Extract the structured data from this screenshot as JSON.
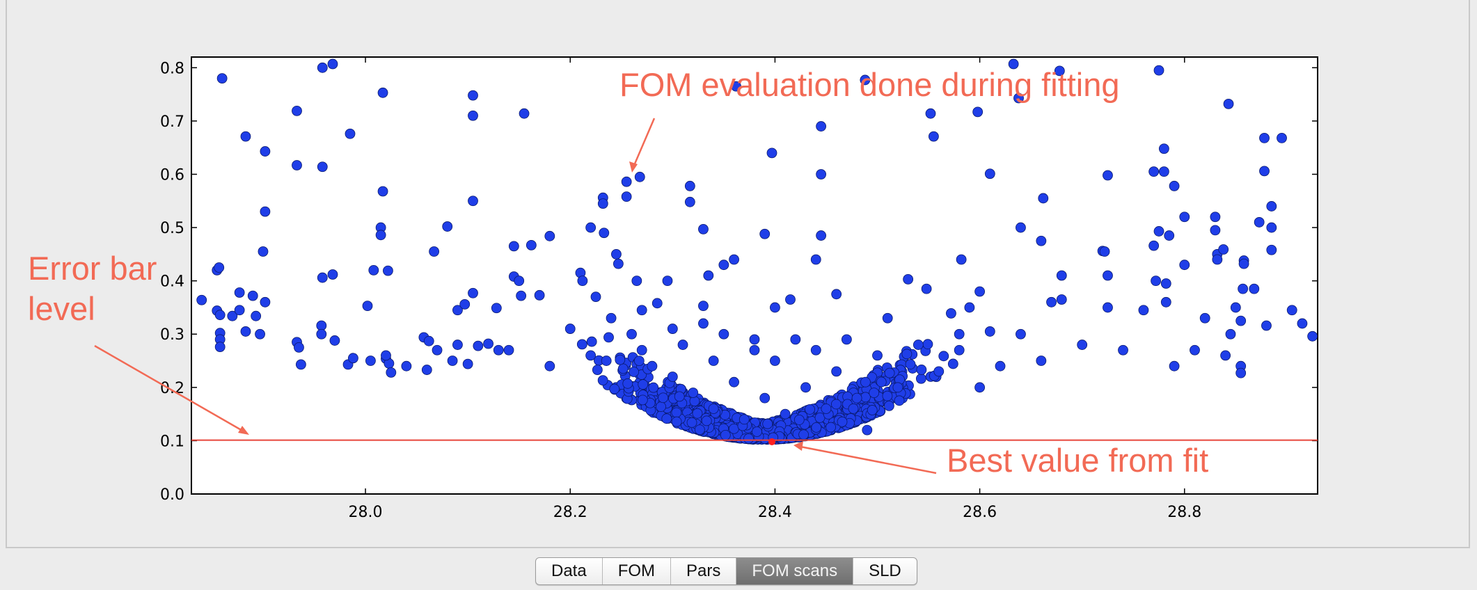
{
  "tabs": [
    {
      "label": "Data",
      "selected": false
    },
    {
      "label": "FOM",
      "selected": false
    },
    {
      "label": "Pars",
      "selected": false
    },
    {
      "label": "FOM scans",
      "selected": true
    },
    {
      "label": "SLD",
      "selected": false
    }
  ],
  "colors": {
    "points": "#1f3ee8",
    "point_edge": "#0a1a6e",
    "best_point": "#ff2020",
    "annotation": "#f26a55",
    "error_line": "#e8453a"
  },
  "annotations": {
    "fom_eval": "FOM evaluation done during fitting",
    "error_bar_line1": "Error bar",
    "error_bar_line2": "level",
    "best_value": "Best value from fit"
  },
  "chart_data": {
    "type": "scatter",
    "title": "",
    "xlabel": "",
    "ylabel": "",
    "xlim": [
      27.83,
      28.93
    ],
    "ylim": [
      0.0,
      0.82
    ],
    "grid": false,
    "legend": "none",
    "x_ticks": [
      28.0,
      28.2,
      28.4,
      28.6,
      28.8
    ],
    "x_tick_labels": [
      "28.0",
      "28.2",
      "28.4",
      "28.6",
      "28.8"
    ],
    "y_ticks": [
      0.0,
      0.1,
      0.2,
      0.3,
      0.4,
      0.5,
      0.6,
      0.7,
      0.8
    ],
    "y_tick_labels": [
      "0.0",
      "0.1",
      "0.2",
      "0.3",
      "0.4",
      "0.5",
      "0.6",
      "0.7",
      "0.8"
    ],
    "error_bar_level": 0.101,
    "best_value": {
      "x": 28.397,
      "y": 0.098
    },
    "points": [
      [
        27.84,
        0.364
      ],
      [
        27.855,
        0.344
      ],
      [
        27.855,
        0.42
      ],
      [
        27.857,
        0.425
      ],
      [
        27.858,
        0.336
      ],
      [
        27.858,
        0.302
      ],
      [
        27.858,
        0.29
      ],
      [
        27.858,
        0.276
      ],
      [
        27.86,
        0.78
      ],
      [
        27.87,
        0.334
      ],
      [
        27.877,
        0.345
      ],
      [
        27.877,
        0.378
      ],
      [
        27.883,
        0.671
      ],
      [
        27.883,
        0.305
      ],
      [
        27.89,
        0.372
      ],
      [
        27.893,
        0.334
      ],
      [
        27.897,
        0.3
      ],
      [
        27.9,
        0.455
      ],
      [
        27.902,
        0.53
      ],
      [
        27.902,
        0.643
      ],
      [
        27.902,
        0.36
      ],
      [
        27.933,
        0.719
      ],
      [
        27.933,
        0.617
      ],
      [
        27.933,
        0.285
      ],
      [
        27.935,
        0.275
      ],
      [
        27.937,
        0.243
      ],
      [
        27.958,
        0.8
      ],
      [
        27.958,
        0.614
      ],
      [
        27.958,
        0.406
      ],
      [
        27.957,
        0.316
      ],
      [
        27.957,
        0.3
      ],
      [
        27.968,
        0.807
      ],
      [
        27.968,
        0.412
      ],
      [
        27.97,
        0.288
      ],
      [
        27.983,
        0.243
      ],
      [
        27.985,
        0.676
      ],
      [
        27.988,
        0.255
      ],
      [
        28.002,
        0.353
      ],
      [
        28.005,
        0.25
      ],
      [
        28.008,
        0.42
      ],
      [
        28.015,
        0.5
      ],
      [
        28.015,
        0.486
      ],
      [
        28.017,
        0.753
      ],
      [
        28.017,
        0.568
      ],
      [
        28.02,
        0.254
      ],
      [
        28.022,
        0.419
      ],
      [
        28.023,
        0.245
      ],
      [
        28.025,
        0.228
      ],
      [
        28.057,
        0.294
      ],
      [
        28.06,
        0.233
      ],
      [
        28.062,
        0.287
      ],
      [
        28.067,
        0.455
      ],
      [
        28.07,
        0.27
      ],
      [
        28.08,
        0.502
      ],
      [
        28.085,
        0.25
      ],
      [
        28.09,
        0.345
      ],
      [
        28.097,
        0.356
      ],
      [
        28.1,
        0.244
      ],
      [
        28.105,
        0.748
      ],
      [
        28.105,
        0.71
      ],
      [
        28.105,
        0.55
      ],
      [
        28.105,
        0.377
      ],
      [
        28.11,
        0.278
      ],
      [
        28.12,
        0.282
      ],
      [
        28.128,
        0.349
      ],
      [
        28.14,
        0.27
      ],
      [
        28.145,
        0.465
      ],
      [
        28.145,
        0.408
      ],
      [
        28.15,
        0.4
      ],
      [
        28.152,
        0.372
      ],
      [
        28.155,
        0.714
      ],
      [
        28.162,
        0.467
      ],
      [
        28.17,
        0.373
      ],
      [
        28.18,
        0.484
      ],
      [
        28.2,
        0.31
      ],
      [
        28.21,
        0.415
      ],
      [
        28.212,
        0.4
      ],
      [
        28.22,
        0.5
      ],
      [
        28.225,
        0.37
      ],
      [
        28.232,
        0.556
      ],
      [
        28.232,
        0.545
      ],
      [
        28.233,
        0.49
      ],
      [
        28.24,
        0.33
      ],
      [
        28.245,
        0.45
      ],
      [
        28.247,
        0.432
      ],
      [
        28.255,
        0.586
      ],
      [
        28.255,
        0.558
      ],
      [
        28.265,
        0.4
      ],
      [
        28.268,
        0.595
      ],
      [
        28.27,
        0.345
      ],
      [
        28.285,
        0.358
      ],
      [
        28.295,
        0.4
      ],
      [
        28.317,
        0.578
      ],
      [
        28.317,
        0.548
      ],
      [
        28.33,
        0.497
      ],
      [
        28.33,
        0.353
      ],
      [
        28.335,
        0.41
      ],
      [
        28.35,
        0.43
      ],
      [
        28.36,
        0.44
      ],
      [
        28.362,
        0.765
      ],
      [
        28.38,
        0.29
      ],
      [
        28.39,
        0.488
      ],
      [
        28.397,
        0.64
      ],
      [
        28.4,
        0.35
      ],
      [
        28.415,
        0.365
      ],
      [
        28.44,
        0.44
      ],
      [
        28.445,
        0.69
      ],
      [
        28.445,
        0.6
      ],
      [
        28.445,
        0.485
      ],
      [
        28.46,
        0.375
      ],
      [
        28.488,
        0.777
      ],
      [
        28.51,
        0.33
      ],
      [
        28.53,
        0.403
      ],
      [
        28.548,
        0.385
      ],
      [
        28.552,
        0.714
      ],
      [
        28.555,
        0.671
      ],
      [
        28.572,
        0.339
      ],
      [
        28.58,
        0.3
      ],
      [
        28.582,
        0.44
      ],
      [
        28.59,
        0.35
      ],
      [
        28.598,
        0.717
      ],
      [
        28.6,
        0.38
      ],
      [
        28.61,
        0.601
      ],
      [
        28.61,
        0.305
      ],
      [
        28.633,
        0.807
      ],
      [
        28.638,
        0.743
      ],
      [
        28.64,
        0.5
      ],
      [
        28.66,
        0.475
      ],
      [
        28.662,
        0.555
      ],
      [
        28.67,
        0.36
      ],
      [
        28.678,
        0.794
      ],
      [
        28.68,
        0.41
      ],
      [
        28.68,
        0.365
      ],
      [
        28.72,
        0.456
      ],
      [
        28.722,
        0.455
      ],
      [
        28.725,
        0.598
      ],
      [
        28.725,
        0.41
      ],
      [
        28.725,
        0.35
      ],
      [
        28.76,
        0.345
      ],
      [
        28.77,
        0.605
      ],
      [
        28.77,
        0.466
      ],
      [
        28.772,
        0.4
      ],
      [
        28.775,
        0.493
      ],
      [
        28.775,
        0.795
      ],
      [
        28.78,
        0.648
      ],
      [
        28.78,
        0.605
      ],
      [
        28.782,
        0.395
      ],
      [
        28.782,
        0.36
      ],
      [
        28.785,
        0.485
      ],
      [
        28.79,
        0.578
      ],
      [
        28.8,
        0.52
      ],
      [
        28.8,
        0.43
      ],
      [
        28.82,
        0.33
      ],
      [
        28.83,
        0.52
      ],
      [
        28.83,
        0.495
      ],
      [
        28.832,
        0.45
      ],
      [
        28.832,
        0.44
      ],
      [
        28.838,
        0.459
      ],
      [
        28.843,
        0.732
      ],
      [
        28.845,
        0.3
      ],
      [
        28.85,
        0.35
      ],
      [
        28.855,
        0.325
      ],
      [
        28.857,
        0.385
      ],
      [
        28.858,
        0.438
      ],
      [
        28.858,
        0.432
      ],
      [
        28.855,
        0.24
      ],
      [
        28.855,
        0.227
      ],
      [
        28.868,
        0.385
      ],
      [
        28.873,
        0.51
      ],
      [
        28.878,
        0.668
      ],
      [
        28.878,
        0.606
      ],
      [
        28.88,
        0.316
      ],
      [
        28.885,
        0.54
      ],
      [
        28.885,
        0.5
      ],
      [
        28.885,
        0.458
      ],
      [
        28.895,
        0.668
      ],
      [
        28.905,
        0.345
      ],
      [
        28.915,
        0.32
      ],
      [
        28.925,
        0.296
      ],
      [
        28.26,
        0.3
      ],
      [
        28.27,
        0.27
      ],
      [
        28.28,
        0.24
      ],
      [
        28.3,
        0.31
      ],
      [
        28.3,
        0.22
      ],
      [
        28.31,
        0.28
      ],
      [
        28.32,
        0.19
      ],
      [
        28.33,
        0.32
      ],
      [
        28.34,
        0.25
      ],
      [
        28.34,
        0.16
      ],
      [
        28.35,
        0.3
      ],
      [
        28.36,
        0.21
      ],
      [
        28.37,
        0.14
      ],
      [
        28.38,
        0.27
      ],
      [
        28.39,
        0.18
      ],
      [
        28.4,
        0.25
      ],
      [
        28.41,
        0.15
      ],
      [
        28.42,
        0.29
      ],
      [
        28.43,
        0.2
      ],
      [
        28.44,
        0.27
      ],
      [
        28.45,
        0.16
      ],
      [
        28.46,
        0.23
      ],
      [
        28.47,
        0.29
      ],
      [
        28.48,
        0.18
      ],
      [
        28.49,
        0.12
      ],
      [
        28.5,
        0.26
      ],
      [
        28.52,
        0.2
      ],
      [
        28.54,
        0.28
      ],
      [
        28.56,
        0.23
      ],
      [
        28.58,
        0.27
      ],
      [
        28.6,
        0.2
      ],
      [
        28.62,
        0.24
      ],
      [
        28.64,
        0.3
      ],
      [
        28.66,
        0.25
      ],
      [
        28.7,
        0.28
      ],
      [
        28.74,
        0.27
      ],
      [
        28.79,
        0.24
      ],
      [
        28.81,
        0.27
      ],
      [
        28.84,
        0.26
      ],
      [
        28.22,
        0.26
      ],
      [
        28.18,
        0.24
      ],
      [
        28.13,
        0.27
      ],
      [
        28.09,
        0.28
      ],
      [
        28.04,
        0.24
      ],
      [
        28.02,
        0.26
      ]
    ],
    "dense_cluster": {
      "description_free": true,
      "center_x": 28.39,
      "x_min": 28.2,
      "x_max": 28.6,
      "y_min": 0.1,
      "y_max": 0.3,
      "count": 1400
    }
  }
}
